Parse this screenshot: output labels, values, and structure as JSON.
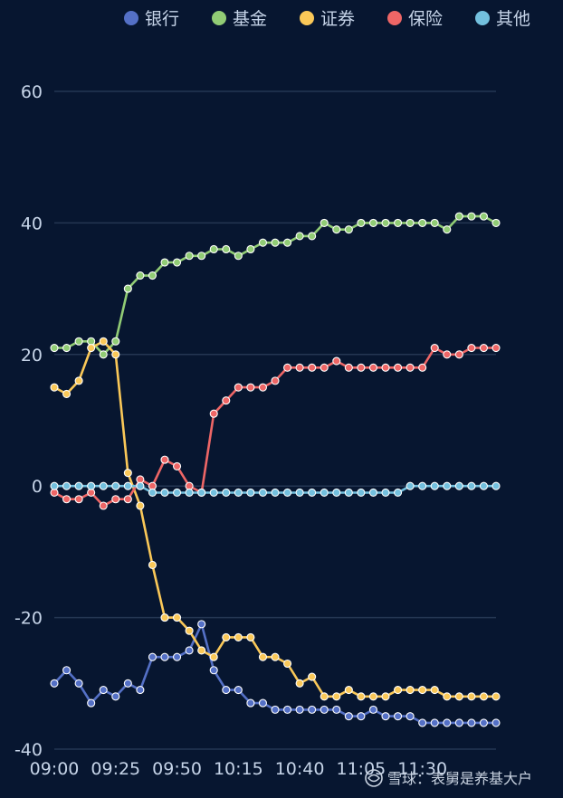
{
  "chart_data": {
    "type": "line",
    "title": "",
    "xlabel": "",
    "ylabel": "",
    "ylim": [
      -40,
      60
    ],
    "yticks": [
      -40,
      -20,
      0,
      20,
      40,
      60
    ],
    "grid": true,
    "legend_position": "top-right",
    "x": [
      "09:00",
      "09:05",
      "09:10",
      "09:15",
      "09:20",
      "09:25",
      "09:30",
      "09:35",
      "09:40",
      "09:45",
      "09:50",
      "09:55",
      "10:00",
      "10:05",
      "10:10",
      "10:15",
      "10:20",
      "10:25",
      "10:30",
      "10:35",
      "10:40",
      "10:45",
      "10:50",
      "10:55",
      "11:00",
      "11:05",
      "11:10",
      "11:15",
      "11:20",
      "11:25",
      "11:30",
      "11:35",
      "11:40",
      "11:45",
      "11:50",
      "11:55",
      "12:00"
    ],
    "x_tick_labels": [
      "09:00",
      "09:25",
      "09:50",
      "10:15",
      "10:40",
      "11:05",
      "11:30"
    ],
    "series": [
      {
        "name": "银行",
        "color": "#5470c6",
        "values": [
          -30,
          -28,
          -30,
          -33,
          -31,
          -32,
          -30,
          -31,
          -26,
          -26,
          -26,
          -25,
          -21,
          -28,
          -31,
          -31,
          -33,
          -33,
          -34,
          -34,
          -34,
          -34,
          -34,
          -34,
          -35,
          -35,
          -34,
          -35,
          -35,
          -35,
          -36,
          -36,
          -36,
          -36,
          -36,
          -36,
          -36
        ]
      },
      {
        "name": "基金",
        "color": "#91cc75",
        "values": [
          21,
          21,
          22,
          22,
          20,
          22,
          30,
          32,
          32,
          34,
          34,
          35,
          35,
          36,
          36,
          35,
          36,
          37,
          37,
          37,
          38,
          38,
          40,
          39,
          39,
          40,
          40,
          40,
          40,
          40,
          40,
          40,
          39,
          41,
          41,
          41,
          40
        ]
      },
      {
        "name": "证券",
        "color": "#fac858",
        "values": [
          15,
          14,
          16,
          21,
          22,
          20,
          2,
          -3,
          -12,
          -20,
          -20,
          -22,
          -25,
          -26,
          -23,
          -23,
          -23,
          -26,
          -26,
          -27,
          -30,
          -29,
          -32,
          -32,
          -31,
          -32,
          -32,
          -32,
          -31,
          -31,
          -31,
          -31,
          -32,
          -32,
          -32,
          -32,
          -32
        ]
      },
      {
        "name": "保险",
        "color": "#ee6666",
        "values": [
          -1,
          -2,
          -2,
          -1,
          -3,
          -2,
          -2,
          1,
          0,
          4,
          3,
          0,
          -1,
          11,
          13,
          15,
          15,
          15,
          16,
          18,
          18,
          18,
          18,
          19,
          18,
          18,
          18,
          18,
          18,
          18,
          18,
          21,
          20,
          20,
          21,
          21,
          21
        ]
      },
      {
        "name": "其他",
        "color": "#73c0de",
        "values": [
          0,
          0,
          0,
          0,
          0,
          0,
          0,
          0,
          -1,
          -1,
          -1,
          -1,
          -1,
          -1,
          -1,
          -1,
          -1,
          -1,
          -1,
          -1,
          -1,
          -1,
          -1,
          -1,
          -1,
          -1,
          -1,
          -1,
          -1,
          0,
          0,
          0,
          0,
          0,
          0,
          0,
          0
        ]
      }
    ]
  },
  "watermark": {
    "text": "雪球：表舅是养基大户"
  }
}
